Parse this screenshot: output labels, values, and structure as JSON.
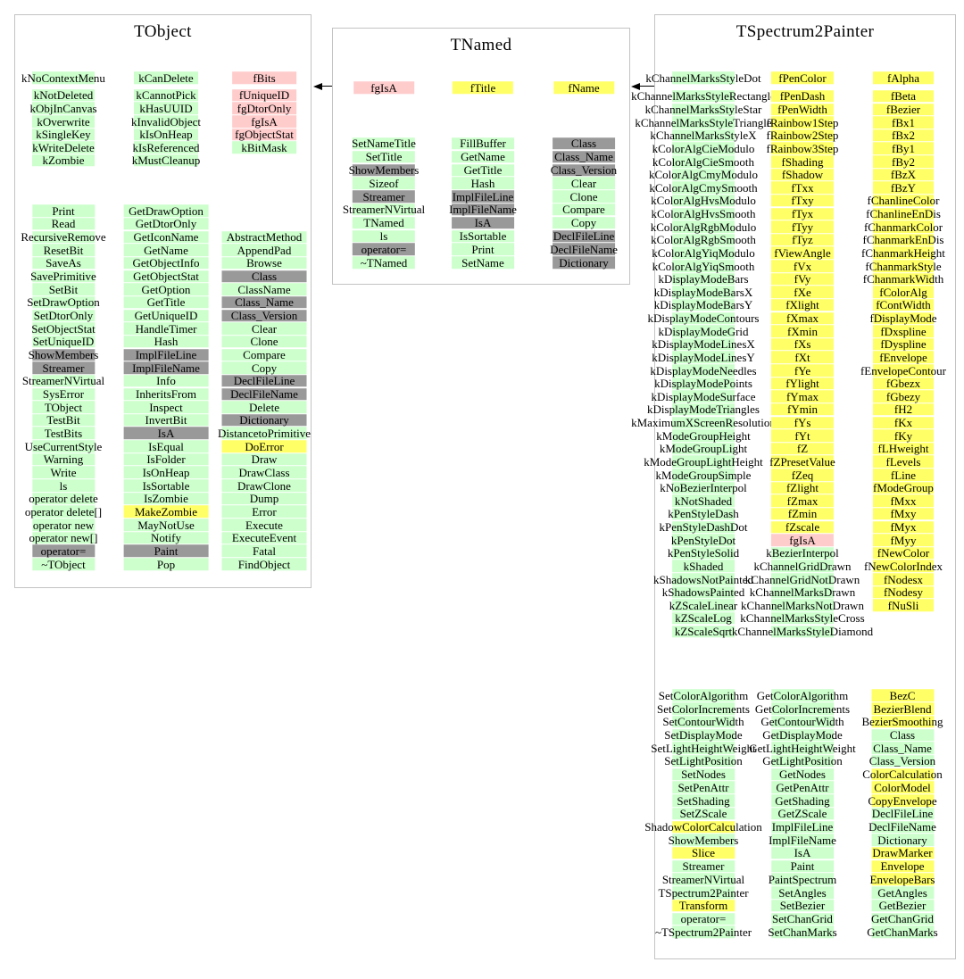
{
  "colors": {
    "g": "#ccffcc",
    "y": "#ffff66",
    "p": "#ffcccc",
    "gy": "#999999"
  },
  "classes": {
    "tobject": {
      "title": "TObject",
      "members_col1": [
        [
          "kNoContextMenu",
          "g"
        ],
        [
          "kNotDeleted",
          "g",
          5
        ],
        [
          "kObjInCanvas",
          "g"
        ],
        [
          "kOverwrite",
          "g"
        ],
        [
          "kSingleKey",
          "g"
        ],
        [
          "kWriteDelete",
          "g"
        ],
        [
          "kZombie",
          "g"
        ]
      ],
      "members_col2": [
        [
          "kCanDelete",
          "g"
        ],
        [
          "kCannotPick",
          "g",
          5
        ],
        [
          "kHasUUID",
          "g"
        ],
        [
          "kInvalidObject",
          "g"
        ],
        [
          "kIsOnHeap",
          "g"
        ],
        [
          "kIsReferenced",
          "g"
        ],
        [
          "kMustCleanup",
          "g"
        ]
      ],
      "members_col3": [
        [
          "fBits",
          "p"
        ],
        [
          "fUniqueID",
          "p",
          5
        ],
        [
          "fgDtorOnly",
          "p"
        ],
        [
          "fgIsA",
          "p"
        ],
        [
          "fgObjectStat",
          "p"
        ],
        [
          "kBitMask",
          "g"
        ]
      ],
      "methods_col1": [
        [
          "Print",
          "g"
        ],
        [
          "Read",
          "g"
        ],
        [
          "RecursiveRemove",
          "g"
        ],
        [
          "ResetBit",
          "g"
        ],
        [
          "SaveAs",
          "g"
        ],
        [
          "SavePrimitive",
          "g"
        ],
        [
          "SetBit",
          "g"
        ],
        [
          "SetDrawOption",
          "g"
        ],
        [
          "SetDtorOnly",
          "g"
        ],
        [
          "SetObjectStat",
          "g"
        ],
        [
          "SetUniqueID",
          "g"
        ],
        [
          "ShowMembers",
          "gy"
        ],
        [
          "Streamer",
          "gy"
        ],
        [
          "StreamerNVirtual",
          "g"
        ],
        [
          "SysError",
          "g"
        ],
        [
          "TObject",
          "g"
        ],
        [
          "TestBit",
          "g"
        ],
        [
          "TestBits",
          "g"
        ],
        [
          "UseCurrentStyle",
          "g"
        ],
        [
          "Warning",
          "g"
        ],
        [
          "Write",
          "g"
        ],
        [
          "ls",
          "g"
        ],
        [
          "operator delete",
          "g"
        ],
        [
          "operator delete[]",
          "g"
        ],
        [
          "operator new",
          "g"
        ],
        [
          "operator new[]",
          "g"
        ],
        [
          "operator=",
          "gy"
        ],
        [
          "~TObject",
          "g"
        ]
      ],
      "methods_col2": [
        [
          "GetDrawOption",
          "g"
        ],
        [
          "GetDtorOnly",
          "g"
        ],
        [
          "GetIconName",
          "g"
        ],
        [
          "GetName",
          "g"
        ],
        [
          "GetObjectInfo",
          "g"
        ],
        [
          "GetObjectStat",
          "g"
        ],
        [
          "GetOption",
          "g"
        ],
        [
          "GetTitle",
          "g"
        ],
        [
          "GetUniqueID",
          "g"
        ],
        [
          "HandleTimer",
          "g"
        ],
        [
          "Hash",
          "g"
        ],
        [
          "ImplFileLine",
          "gy"
        ],
        [
          "ImplFileName",
          "gy"
        ],
        [
          "Info",
          "g"
        ],
        [
          "InheritsFrom",
          "g"
        ],
        [
          "Inspect",
          "g"
        ],
        [
          "InvertBit",
          "g"
        ],
        [
          "IsA",
          "gy"
        ],
        [
          "IsEqual",
          "g"
        ],
        [
          "IsFolder",
          "g"
        ],
        [
          "IsOnHeap",
          "g"
        ],
        [
          "IsSortable",
          "g"
        ],
        [
          "IsZombie",
          "g"
        ],
        [
          "MakeZombie",
          "y"
        ],
        [
          "MayNotUse",
          "g"
        ],
        [
          "Notify",
          "g"
        ],
        [
          "Paint",
          "gy"
        ],
        [
          "Pop",
          "g"
        ]
      ],
      "methods_col3": [
        [
          "AbstractMethod",
          "g"
        ],
        [
          "AppendPad",
          "g"
        ],
        [
          "Browse",
          "g"
        ],
        [
          "Class",
          "gy"
        ],
        [
          "ClassName",
          "g"
        ],
        [
          "Class_Name",
          "gy"
        ],
        [
          "Class_Version",
          "gy"
        ],
        [
          "Clear",
          "g"
        ],
        [
          "Clone",
          "g"
        ],
        [
          "Compare",
          "g"
        ],
        [
          "Copy",
          "g"
        ],
        [
          "DeclFileLine",
          "gy"
        ],
        [
          "DeclFileName",
          "gy"
        ],
        [
          "Delete",
          "g"
        ],
        [
          "Dictionary",
          "gy"
        ],
        [
          "DistancetoPrimitive",
          "g"
        ],
        [
          "DoError",
          "y"
        ],
        [
          "Draw",
          "g"
        ],
        [
          "DrawClass",
          "g"
        ],
        [
          "DrawClone",
          "g"
        ],
        [
          "Dump",
          "g"
        ],
        [
          "Error",
          "g"
        ],
        [
          "Execute",
          "g"
        ],
        [
          "ExecuteEvent",
          "g"
        ],
        [
          "Fatal",
          "g"
        ],
        [
          "FindObject",
          "g"
        ]
      ]
    },
    "tnamed": {
      "title": "TNamed",
      "members_col1": [
        [
          "fgIsA",
          "p"
        ]
      ],
      "members_col2": [
        [
          "fTitle",
          "y"
        ]
      ],
      "members_col3": [
        [
          "fName",
          "y"
        ]
      ],
      "methods_col1": [
        [
          "SetNameTitle",
          "g"
        ],
        [
          "SetTitle",
          "g"
        ],
        [
          "ShowMembers",
          "gy"
        ],
        [
          "Sizeof",
          "g"
        ],
        [
          "Streamer",
          "gy"
        ],
        [
          "StreamerNVirtual",
          "g"
        ],
        [
          "TNamed",
          "g"
        ],
        [
          "ls",
          "g"
        ],
        [
          "operator=",
          "gy"
        ],
        [
          "~TNamed",
          "g"
        ]
      ],
      "methods_col2": [
        [
          "FillBuffer",
          "g"
        ],
        [
          "GetName",
          "g"
        ],
        [
          "GetTitle",
          "g"
        ],
        [
          "Hash",
          "g"
        ],
        [
          "ImplFileLine",
          "gy"
        ],
        [
          "ImplFileName",
          "gy"
        ],
        [
          "IsA",
          "gy"
        ],
        [
          "IsSortable",
          "g"
        ],
        [
          "Print",
          "g"
        ],
        [
          "SetName",
          "g"
        ]
      ],
      "methods_col3": [
        [
          "Class",
          "gy"
        ],
        [
          "Class_Name",
          "gy"
        ],
        [
          "Class_Version",
          "gy"
        ],
        [
          "Clear",
          "g"
        ],
        [
          "Clone",
          "g"
        ],
        [
          "Compare",
          "g"
        ],
        [
          "Copy",
          "g"
        ],
        [
          "DeclFileLine",
          "gy"
        ],
        [
          "DeclFileName",
          "gy"
        ],
        [
          "Dictionary",
          "gy"
        ]
      ]
    },
    "tspectrum2painter": {
      "title": "TSpectrum2Painter",
      "members_col1": [
        [
          "kChannelMarksStyleDot",
          "g"
        ],
        [
          "kChannelMarksStyleRectangle",
          "g",
          6
        ],
        [
          "kChannelMarksStyleStar",
          "g"
        ],
        [
          "kChannelMarksStyleTriangle",
          "g"
        ],
        [
          "kChannelMarksStyleX",
          "g"
        ],
        [
          "kColorAlgCieModulo",
          "g"
        ],
        [
          "kColorAlgCieSmooth",
          "g"
        ],
        [
          "kColorAlgCmyModulo",
          "g"
        ],
        [
          "kColorAlgCmySmooth",
          "g"
        ],
        [
          "kColorAlgHvsModulo",
          "g"
        ],
        [
          "kColorAlgHvsSmooth",
          "g"
        ],
        [
          "kColorAlgRgbModulo",
          "g"
        ],
        [
          "kColorAlgRgbSmooth",
          "g"
        ],
        [
          "kColorAlgYiqModulo",
          "g"
        ],
        [
          "kColorAlgYiqSmooth",
          "g"
        ],
        [
          "kDisplayModeBars",
          "g"
        ],
        [
          "kDisplayModeBarsX",
          "g"
        ],
        [
          "kDisplayModeBarsY",
          "g"
        ],
        [
          "kDisplayModeContours",
          "g"
        ],
        [
          "kDisplayModeGrid",
          "g"
        ],
        [
          "kDisplayModeLinesX",
          "g"
        ],
        [
          "kDisplayModeLinesY",
          "g"
        ],
        [
          "kDisplayModeNeedles",
          "g"
        ],
        [
          "kDisplayModePoints",
          "g"
        ],
        [
          "kDisplayModeSurface",
          "g"
        ],
        [
          "kDisplayModeTriangles",
          "g"
        ],
        [
          "kMaximumXScreenResolution",
          "g"
        ],
        [
          "kModeGroupHeight",
          "g"
        ],
        [
          "kModeGroupLight",
          "g"
        ],
        [
          "kModeGroupLightHeight",
          "g"
        ],
        [
          "kModeGroupSimple",
          "g"
        ],
        [
          "kNoBezierInterpol",
          "g"
        ],
        [
          "kNotShaded",
          "g"
        ],
        [
          "kPenStyleDash",
          "g"
        ],
        [
          "kPenStyleDashDot",
          "g"
        ],
        [
          "kPenStyleDot",
          "g"
        ],
        [
          "kPenStyleSolid",
          "g"
        ],
        [
          "kShaded",
          "g"
        ],
        [
          "kShadowsNotPainted",
          "g"
        ],
        [
          "kShadowsPainted",
          "g"
        ],
        [
          "kZScaleLinear",
          "g"
        ],
        [
          "kZScaleLog",
          "g"
        ],
        [
          "kZScaleSqrt",
          "g"
        ]
      ],
      "members_col2": [
        [
          "fPenColor",
          "y"
        ],
        [
          "fPenDash",
          "y",
          6
        ],
        [
          "fPenWidth",
          "y"
        ],
        [
          "fRainbow1Step",
          "y"
        ],
        [
          "fRainbow2Step",
          "y"
        ],
        [
          "fRainbow3Step",
          "y"
        ],
        [
          "fShading",
          "y"
        ],
        [
          "fShadow",
          "y"
        ],
        [
          "fTxx",
          "y"
        ],
        [
          "fTxy",
          "y"
        ],
        [
          "fTyx",
          "y"
        ],
        [
          "fTyy",
          "y"
        ],
        [
          "fTyz",
          "y"
        ],
        [
          "fViewAngle",
          "y"
        ],
        [
          "fVx",
          "y"
        ],
        [
          "fVy",
          "y"
        ],
        [
          "fXe",
          "y"
        ],
        [
          "fXlight",
          "y"
        ],
        [
          "fXmax",
          "y"
        ],
        [
          "fXmin",
          "y"
        ],
        [
          "fXs",
          "y"
        ],
        [
          "fXt",
          "y"
        ],
        [
          "fYe",
          "y"
        ],
        [
          "fYlight",
          "y"
        ],
        [
          "fYmax",
          "y"
        ],
        [
          "fYmin",
          "y"
        ],
        [
          "fYs",
          "y"
        ],
        [
          "fYt",
          "y"
        ],
        [
          "fZ",
          "y"
        ],
        [
          "fZPresetValue",
          "y"
        ],
        [
          "fZeq",
          "y"
        ],
        [
          "fZlight",
          "y"
        ],
        [
          "fZmax",
          "y"
        ],
        [
          "fZmin",
          "y"
        ],
        [
          "fZscale",
          "y"
        ],
        [
          "fgIsA",
          "p"
        ],
        [
          "kBezierInterpol",
          "g"
        ],
        [
          "kChannelGridDrawn",
          "g"
        ],
        [
          "kChannelGridNotDrawn",
          "g"
        ],
        [
          "kChannelMarksDrawn",
          "g"
        ],
        [
          "kChannelMarksNotDrawn",
          "g"
        ],
        [
          "kChannelMarksStyleCross",
          "g"
        ],
        [
          "kChannelMarksStyleDiamond",
          "g"
        ]
      ],
      "members_col3": [
        [
          "fAlpha",
          "y"
        ],
        [
          "fBeta",
          "y",
          6
        ],
        [
          "fBezier",
          "y"
        ],
        [
          "fBx1",
          "y"
        ],
        [
          "fBx2",
          "y"
        ],
        [
          "fBy1",
          "y"
        ],
        [
          "fBy2",
          "y"
        ],
        [
          "fBzX",
          "y"
        ],
        [
          "fBzY",
          "y"
        ],
        [
          "fChanlineColor",
          "y"
        ],
        [
          "fChanlineEnDis",
          "y"
        ],
        [
          "fChanmarkColor",
          "y"
        ],
        [
          "fChanmarkEnDis",
          "y"
        ],
        [
          "fChanmarkHeight",
          "y"
        ],
        [
          "fChanmarkStyle",
          "y"
        ],
        [
          "fChanmarkWidth",
          "y"
        ],
        [
          "fColorAlg",
          "y"
        ],
        [
          "fContWidth",
          "y"
        ],
        [
          "fDisplayMode",
          "y"
        ],
        [
          "fDxspline",
          "y"
        ],
        [
          "fDyspline",
          "y"
        ],
        [
          "fEnvelope",
          "y"
        ],
        [
          "fEnvelopeContour",
          "y"
        ],
        [
          "fGbezx",
          "y"
        ],
        [
          "fGbezy",
          "y"
        ],
        [
          "fH2",
          "y"
        ],
        [
          "fKx",
          "y"
        ],
        [
          "fKy",
          "y"
        ],
        [
          "fLHweight",
          "y"
        ],
        [
          "fLevels",
          "y"
        ],
        [
          "fLine",
          "y"
        ],
        [
          "fModeGroup",
          "y"
        ],
        [
          "fMxx",
          "y"
        ],
        [
          "fMxy",
          "y"
        ],
        [
          "fMyx",
          "y"
        ],
        [
          "fMyy",
          "y"
        ],
        [
          "fNewColor",
          "y"
        ],
        [
          "fNewColorIndex",
          "y"
        ],
        [
          "fNodesx",
          "y"
        ],
        [
          "fNodesy",
          "y"
        ],
        [
          "fNuSli",
          "y"
        ]
      ],
      "methods_col1": [
        [
          "SetColorAlgorithm",
          "g"
        ],
        [
          "SetColorIncrements",
          "g"
        ],
        [
          "SetContourWidth",
          "g"
        ],
        [
          "SetDisplayMode",
          "g"
        ],
        [
          "SetLightHeightWeight",
          "g"
        ],
        [
          "SetLightPosition",
          "g"
        ],
        [
          "SetNodes",
          "g"
        ],
        [
          "SetPenAttr",
          "g"
        ],
        [
          "SetShading",
          "g"
        ],
        [
          "SetZScale",
          "g"
        ],
        [
          "ShadowColorCalculation",
          "y"
        ],
        [
          "ShowMembers",
          "g"
        ],
        [
          "Slice",
          "y"
        ],
        [
          "Streamer",
          "g"
        ],
        [
          "StreamerNVirtual",
          "g"
        ],
        [
          "TSpectrum2Painter",
          "g"
        ],
        [
          "Transform",
          "y"
        ],
        [
          "operator=",
          "g"
        ],
        [
          "~TSpectrum2Painter",
          "g"
        ]
      ],
      "methods_col2": [
        [
          "GetColorAlgorithm",
          "g"
        ],
        [
          "GetColorIncrements",
          "g"
        ],
        [
          "GetContourWidth",
          "g"
        ],
        [
          "GetDisplayMode",
          "g"
        ],
        [
          "GetLightHeightWeight",
          "g"
        ],
        [
          "GetLightPosition",
          "g"
        ],
        [
          "GetNodes",
          "g"
        ],
        [
          "GetPenAttr",
          "g"
        ],
        [
          "GetShading",
          "g"
        ],
        [
          "GetZScale",
          "g"
        ],
        [
          "ImplFileLine",
          "g"
        ],
        [
          "ImplFileName",
          "g"
        ],
        [
          "IsA",
          "g"
        ],
        [
          "Paint",
          "g"
        ],
        [
          "PaintSpectrum",
          "g"
        ],
        [
          "SetAngles",
          "g"
        ],
        [
          "SetBezier",
          "g"
        ],
        [
          "SetChanGrid",
          "g"
        ],
        [
          "SetChanMarks",
          "g"
        ]
      ],
      "methods_col3": [
        [
          "BezC",
          "y"
        ],
        [
          "BezierBlend",
          "y"
        ],
        [
          "BezierSmoothing",
          "y"
        ],
        [
          "Class",
          "g"
        ],
        [
          "Class_Name",
          "g"
        ],
        [
          "Class_Version",
          "g"
        ],
        [
          "ColorCalculation",
          "y"
        ],
        [
          "ColorModel",
          "y"
        ],
        [
          "CopyEnvelope",
          "y"
        ],
        [
          "DeclFileLine",
          "g"
        ],
        [
          "DeclFileName",
          "g"
        ],
        [
          "Dictionary",
          "g"
        ],
        [
          "DrawMarker",
          "y"
        ],
        [
          "Envelope",
          "y"
        ],
        [
          "EnvelopeBars",
          "y"
        ],
        [
          "GetAngles",
          "g"
        ],
        [
          "GetBezier",
          "g"
        ],
        [
          "GetChanGrid",
          "g"
        ],
        [
          "GetChanMarks",
          "g"
        ]
      ]
    }
  }
}
